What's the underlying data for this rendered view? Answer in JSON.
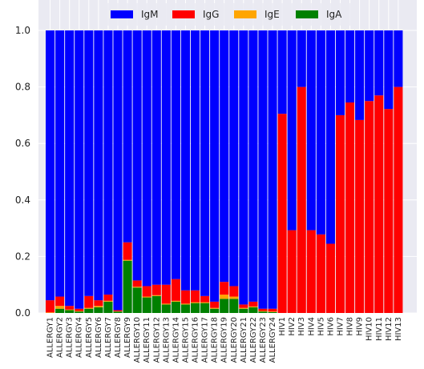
{
  "chart_data": {
    "type": "bar",
    "stacked": true,
    "categories": [
      "ALLERGY1",
      "ALLERGY2",
      "ALLERGY3",
      "ALLERGY4",
      "ALLERGY5",
      "ALLERGY6",
      "ALLERGY7",
      "ALLERGY8",
      "ALLERGY9",
      "ALLERGY10",
      "ALLERGY11",
      "ALLERGY12",
      "ALLERGY13",
      "ALLERGY14",
      "ALLERGY15",
      "ALLERGY16",
      "ALLERGY17",
      "ALLERGY18",
      "ALLERGY19",
      "ALLERGY20",
      "ALLERGY21",
      "ALLERGY22",
      "ALLERGY23",
      "ALLERGY24",
      "HIV1",
      "HIV2",
      "HIV3",
      "HIV4",
      "HIV5",
      "HIV6",
      "HIV7",
      "HIV8",
      "HIV9",
      "HIV10",
      "HIV11",
      "HIV12",
      "HIV13"
    ],
    "series": [
      {
        "name": "IgA",
        "color": "#008000",
        "values": [
          0.0,
          0.015,
          0.01,
          0.005,
          0.015,
          0.02,
          0.04,
          0.005,
          0.185,
          0.09,
          0.055,
          0.06,
          0.03,
          0.04,
          0.03,
          0.035,
          0.035,
          0.015,
          0.05,
          0.05,
          0.015,
          0.02,
          0.005,
          0.003,
          0,
          0,
          0,
          0,
          0,
          0,
          0,
          0,
          0,
          0,
          0,
          0,
          0
        ]
      },
      {
        "name": "IgE",
        "color": "#FFA500",
        "values": [
          0.002,
          0.01,
          0.002,
          0.002,
          0.003,
          0.005,
          0.003,
          0.001,
          0.003,
          0.003,
          0.003,
          0.003,
          0.003,
          0.003,
          0.003,
          0.003,
          0.003,
          0.003,
          0.015,
          0.008,
          0.003,
          0.003,
          0.002,
          0.002,
          0,
          0,
          0,
          0,
          0,
          0,
          0,
          0,
          0,
          0,
          0,
          0,
          0
        ]
      },
      {
        "name": "IgG",
        "color": "#FF0000",
        "values": [
          0.043,
          0.033,
          0.013,
          0.008,
          0.042,
          0.02,
          0.022,
          0.004,
          0.062,
          0.022,
          0.037,
          0.037,
          0.067,
          0.077,
          0.047,
          0.042,
          0.022,
          0.022,
          0.045,
          0.037,
          0.012,
          0.017,
          0.008,
          0.01,
          0.705,
          0.293,
          0.8,
          0.293,
          0.278,
          0.245,
          0.7,
          0.745,
          0.683,
          0.75,
          0.77,
          0.722,
          0.8
        ]
      },
      {
        "name": "IgM",
        "color": "#0000FF",
        "values": [
          0.955,
          0.942,
          0.975,
          0.985,
          0.94,
          0.955,
          0.935,
          0.99,
          0.75,
          0.885,
          0.905,
          0.9,
          0.9,
          0.88,
          0.92,
          0.92,
          0.94,
          0.96,
          0.89,
          0.905,
          0.97,
          0.96,
          0.985,
          0.985,
          0.295,
          0.707,
          0.2,
          0.707,
          0.722,
          0.755,
          0.3,
          0.255,
          0.317,
          0.25,
          0.23,
          0.278,
          0.2
        ]
      }
    ],
    "legend_order": [
      "IgM",
      "IgG",
      "IgE",
      "IgA"
    ],
    "legend_position": "top-center",
    "ylim": [
      0,
      1.0
    ],
    "yticks": [
      "0.0",
      "0.2",
      "0.4",
      "0.6",
      "0.8",
      "1.0"
    ],
    "grid": true,
    "background": "#EAEAF2"
  }
}
